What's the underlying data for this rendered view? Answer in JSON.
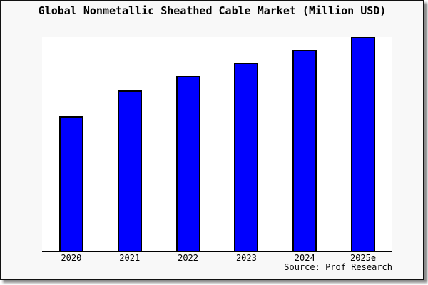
{
  "chart_data": {
    "type": "bar",
    "title": "Global Nonmetallic Sheathed Cable Market (Million USD)",
    "units": "Million USD",
    "categories": [
      "2020",
      "2021",
      "2022",
      "2023",
      "2024",
      "2025e"
    ],
    "values": [
      63,
      75,
      82,
      88,
      94,
      100
    ],
    "value_scale": "relative bar heights, 2025e = 100 (chart shows no y-axis tick values)",
    "ylim": [
      0,
      100
    ],
    "xlabel": "",
    "ylabel": "",
    "grid": false,
    "legend": false,
    "source": "Source: Prof Research",
    "colors": {
      "bar_fill": "#0000fe",
      "bar_border": "#000000",
      "plot_background": "#ffffff",
      "figure_background": "#f8f8f8",
      "axis": "#000000",
      "text": "#000000"
    }
  }
}
